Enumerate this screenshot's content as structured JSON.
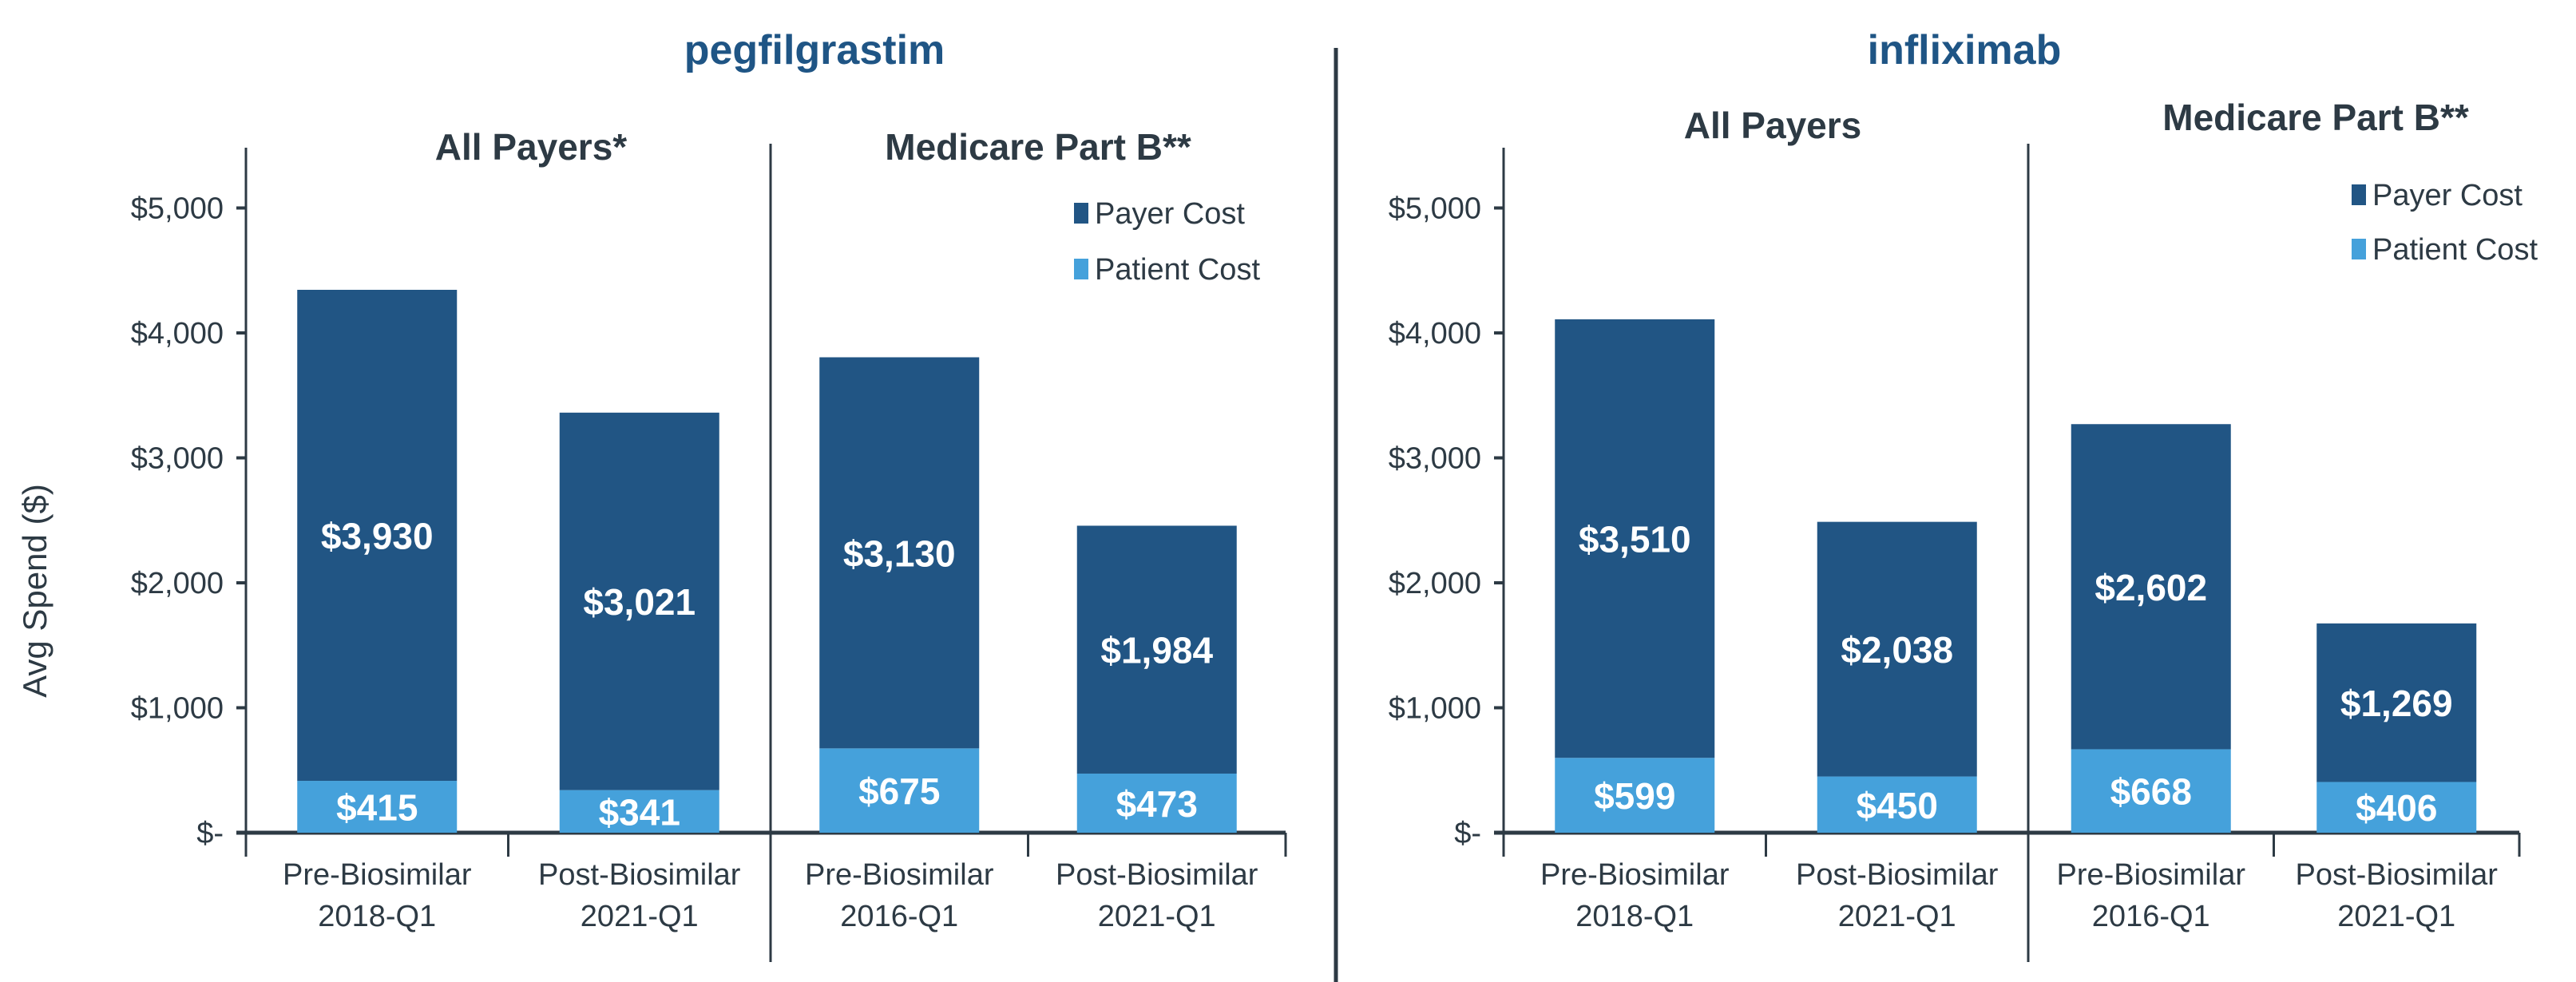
{
  "chart_data": [
    {
      "type": "bar",
      "stacked": true,
      "title": "pegfilgrastim",
      "ylabel": "Avg Spend ($)",
      "ylim": [
        0,
        5500
      ],
      "yticks": [
        0,
        1000,
        2000,
        3000,
        4000,
        5000
      ],
      "ytick_labels": [
        "$-",
        "$1,000",
        "$2,000",
        "$3,000",
        "$4,000",
        "$5,000"
      ],
      "grid": false,
      "legend": {
        "placement": "top-right",
        "entries": [
          "Payer Cost",
          "Patient Cost"
        ]
      },
      "groups": [
        {
          "title": "All Payers*",
          "categories": [
            [
              "Pre-Biosimilar",
              "2018-Q1"
            ],
            [
              "Post-Biosimilar",
              "2021-Q1"
            ]
          ],
          "series": [
            {
              "name": "Patient Cost",
              "values": [
                415,
                341
              ],
              "labels": [
                "$415",
                "$341"
              ]
            },
            {
              "name": "Payer Cost",
              "values": [
                3930,
                3021
              ],
              "labels": [
                "$3,930",
                "$3,021"
              ]
            }
          ]
        },
        {
          "title": "Medicare Part B**",
          "categories": [
            [
              "Pre-Biosimilar",
              "2016-Q1"
            ],
            [
              "Post-Biosimilar",
              "2021-Q1"
            ]
          ],
          "series": [
            {
              "name": "Patient Cost",
              "values": [
                675,
                473
              ],
              "labels": [
                "$675",
                "$473"
              ]
            },
            {
              "name": "Payer Cost",
              "values": [
                3130,
                1984
              ],
              "labels": [
                "$3,130",
                "$1,984"
              ]
            }
          ]
        }
      ]
    },
    {
      "type": "bar",
      "stacked": true,
      "title": "infliximab",
      "ylabel": "",
      "ylim": [
        0,
        5500
      ],
      "yticks": [
        0,
        1000,
        2000,
        3000,
        4000,
        5000
      ],
      "ytick_labels": [
        "$-",
        "$1,000",
        "$2,000",
        "$3,000",
        "$4,000",
        "$5,000"
      ],
      "grid": false,
      "legend": {
        "placement": "top-right",
        "entries": [
          "Payer Cost",
          "Patient Cost"
        ]
      },
      "groups": [
        {
          "title": "All Payers",
          "categories": [
            [
              "Pre-Biosimilar",
              "2018-Q1"
            ],
            [
              "Post-Biosimilar",
              "2021-Q1"
            ]
          ],
          "series": [
            {
              "name": "Patient Cost",
              "values": [
                599,
                450
              ],
              "labels": [
                "$599",
                "$450"
              ]
            },
            {
              "name": "Payer Cost",
              "values": [
                3510,
                2038
              ],
              "labels": [
                "$3,510",
                "$2,038"
              ]
            }
          ]
        },
        {
          "title": "Medicare Part B**",
          "categories": [
            [
              "Pre-Biosimilar",
              "2016-Q1"
            ],
            [
              "Post-Biosimilar",
              "2021-Q1"
            ]
          ],
          "series": [
            {
              "name": "Patient Cost",
              "values": [
                668,
                406
              ],
              "labels": [
                "$668",
                "$406"
              ]
            },
            {
              "name": "Payer Cost",
              "values": [
                2602,
                1269
              ],
              "labels": [
                "$2,602",
                "$1,269"
              ]
            }
          ]
        }
      ]
    }
  ],
  "colors": {
    "payer_cost": "#215584",
    "patient_cost": "#45a1db",
    "title": "#1f5585",
    "text": "#2d3a44",
    "axis": "#2d3a44"
  }
}
